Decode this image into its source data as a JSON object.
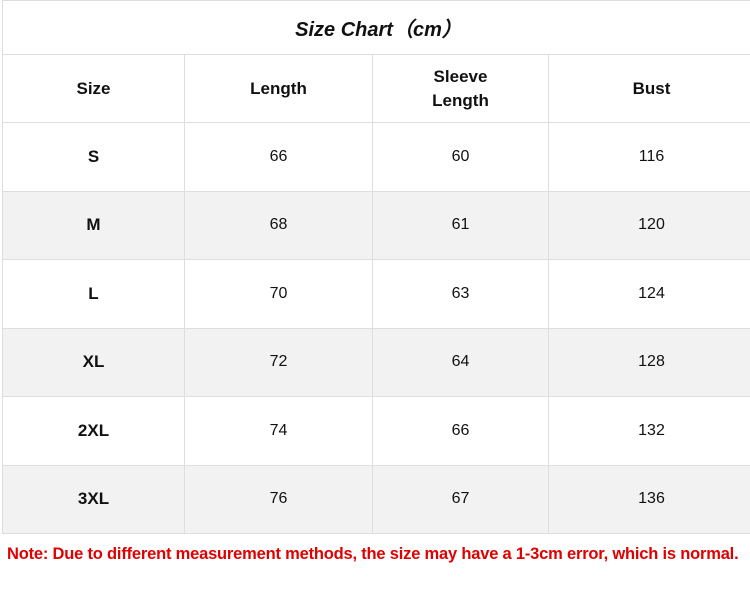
{
  "title": "Size Chart（cm）",
  "columns": [
    "Size",
    "Length",
    "Sleeve Length",
    "Bust"
  ],
  "rows": [
    [
      "S",
      "66",
      "60",
      "116"
    ],
    [
      "M",
      "68",
      "61",
      "120"
    ],
    [
      "L",
      "70",
      "63",
      "124"
    ],
    [
      "XL",
      "72",
      "64",
      "128"
    ],
    [
      "2XL",
      "74",
      "66",
      "132"
    ],
    [
      "3XL",
      "76",
      "67",
      "136"
    ]
  ],
  "note": "Note: Due to different measurement methods, the size may have a 1-3cm error, which is normal.",
  "colors": {
    "note": "#e00000",
    "alt_row": "#f2f2f2",
    "border": "#dedede"
  }
}
